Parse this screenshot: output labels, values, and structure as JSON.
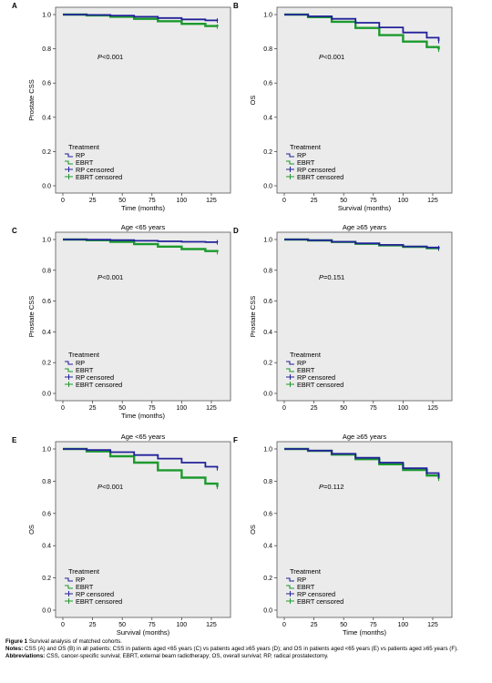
{
  "chart_data": [
    {
      "type": "line",
      "panel_letter": "A",
      "title": "",
      "xlabel": "Time (months)",
      "ylabel": "Prostate CSS",
      "xlim": [
        0,
        135
      ],
      "ylim": [
        0,
        1
      ],
      "x_ticks": [
        "0",
        "25",
        "50",
        "75",
        "100",
        "125"
      ],
      "y_ticks": [
        "0.0",
        "0.2",
        "0.4",
        "0.6",
        "0.8",
        "1.0"
      ],
      "pvalue_label": "P<0.001",
      "legend": {
        "title": "Treatment",
        "entries": [
          "RP",
          "EBRT",
          "RP censored",
          "EBRT censored"
        ]
      },
      "series": [
        {
          "name": "RP",
          "color": "#22229a",
          "x": [
            0,
            20,
            40,
            60,
            80,
            100,
            120,
            130
          ],
          "y": [
            1.0,
            0.998,
            0.994,
            0.987,
            0.98,
            0.972,
            0.966,
            0.965
          ]
        },
        {
          "name": "EBRT",
          "color": "#1c9a2e",
          "x": [
            0,
            20,
            40,
            60,
            80,
            100,
            120,
            130
          ],
          "y": [
            1.0,
            0.995,
            0.987,
            0.975,
            0.961,
            0.946,
            0.933,
            0.93
          ]
        }
      ],
      "grid": false
    },
    {
      "type": "line",
      "panel_letter": "B",
      "title": "",
      "xlabel": "Survival (months)",
      "ylabel": "OS",
      "xlim": [
        0,
        135
      ],
      "ylim": [
        0,
        1
      ],
      "x_ticks": [
        "0",
        "25",
        "50",
        "75",
        "100",
        "125"
      ],
      "y_ticks": [
        "0.0",
        "0.2",
        "0.4",
        "0.6",
        "0.8",
        "1.0"
      ],
      "pvalue_label": "P<0.001",
      "legend": {
        "title": "Treatment",
        "entries": [
          "RP",
          "EBRT",
          "RP censored",
          "EBRT censored"
        ]
      },
      "series": [
        {
          "name": "RP",
          "color": "#22229a",
          "x": [
            0,
            20,
            40,
            60,
            80,
            100,
            120,
            130
          ],
          "y": [
            1.0,
            0.99,
            0.975,
            0.952,
            0.925,
            0.895,
            0.865,
            0.845
          ]
        },
        {
          "name": "EBRT",
          "color": "#1c9a2e",
          "x": [
            0,
            20,
            40,
            60,
            80,
            100,
            120,
            130
          ],
          "y": [
            1.0,
            0.985,
            0.958,
            0.922,
            0.88,
            0.842,
            0.81,
            0.795
          ]
        }
      ],
      "grid": false
    },
    {
      "type": "line",
      "panel_letter": "C",
      "title": "Age <65 years",
      "xlabel": "Time (months)",
      "ylabel": "Prostate CSS",
      "xlim": [
        0,
        135
      ],
      "ylim": [
        0,
        1
      ],
      "x_ticks": [
        "0",
        "25",
        "50",
        "75",
        "100",
        "125"
      ],
      "y_ticks": [
        "0.0",
        "0.2",
        "0.4",
        "0.6",
        "0.8",
        "1.0"
      ],
      "pvalue_label": "P<0.001",
      "legend": {
        "title": "Treatment",
        "entries": [
          "RP",
          "EBRT",
          "RP censored",
          "EBRT censored"
        ]
      },
      "series": [
        {
          "name": "RP",
          "color": "#22229a",
          "x": [
            0,
            20,
            40,
            60,
            80,
            100,
            120,
            130
          ],
          "y": [
            1.0,
            0.999,
            0.996,
            0.992,
            0.988,
            0.985,
            0.983,
            0.982
          ]
        },
        {
          "name": "EBRT",
          "color": "#1c9a2e",
          "x": [
            0,
            20,
            40,
            60,
            80,
            100,
            120,
            130
          ],
          "y": [
            1.0,
            0.995,
            0.985,
            0.97,
            0.954,
            0.938,
            0.925,
            0.918
          ]
        }
      ],
      "grid": false
    },
    {
      "type": "line",
      "panel_letter": "D",
      "title": "Age ≥65  years",
      "xlabel": "",
      "ylabel": "Prostate CSS",
      "xlim": [
        0,
        135
      ],
      "ylim": [
        0,
        1
      ],
      "x_ticks": [
        "0",
        "25",
        "50",
        "75",
        "100",
        "125"
      ],
      "y_ticks": [
        "0.0",
        "0.2",
        "0.4",
        "0.6",
        "0.8",
        "1.0"
      ],
      "pvalue_label": "P=0.151",
      "legend": {
        "title": "Treatment",
        "entries": [
          "RP",
          "EBRT",
          "RP censored",
          "EBRT censored"
        ]
      },
      "series": [
        {
          "name": "RP",
          "color": "#22229a",
          "x": [
            0,
            20,
            40,
            60,
            80,
            100,
            120,
            130
          ],
          "y": [
            1.0,
            0.995,
            0.985,
            0.975,
            0.965,
            0.955,
            0.948,
            0.945
          ]
        },
        {
          "name": "EBRT",
          "color": "#1c9a2e",
          "x": [
            0,
            20,
            40,
            60,
            80,
            100,
            120,
            130
          ],
          "y": [
            1.0,
            0.994,
            0.984,
            0.972,
            0.962,
            0.952,
            0.944,
            0.94
          ]
        }
      ],
      "grid": false
    },
    {
      "type": "line",
      "panel_letter": "E",
      "title": "Age <65 years",
      "xlabel": "Survival (months)",
      "ylabel": "OS",
      "xlim": [
        0,
        135
      ],
      "ylim": [
        0,
        1
      ],
      "x_ticks": [
        "0",
        "25",
        "50",
        "75",
        "100",
        "125"
      ],
      "y_ticks": [
        "0.0",
        "0.2",
        "0.4",
        "0.6",
        "0.8",
        "1.0"
      ],
      "pvalue_label": "P<0.001",
      "legend": {
        "title": "Treatment",
        "entries": [
          "RP",
          "EBRT",
          "RP censored",
          "EBRT censored"
        ]
      },
      "series": [
        {
          "name": "RP",
          "color": "#22229a",
          "x": [
            0,
            20,
            40,
            60,
            80,
            100,
            120,
            130
          ],
          "y": [
            1.0,
            0.993,
            0.98,
            0.962,
            0.94,
            0.915,
            0.89,
            0.88
          ]
        },
        {
          "name": "EBRT",
          "color": "#1c9a2e",
          "x": [
            0,
            20,
            40,
            60,
            80,
            100,
            120,
            130
          ],
          "y": [
            1.0,
            0.985,
            0.955,
            0.915,
            0.868,
            0.822,
            0.785,
            0.765
          ]
        }
      ],
      "grid": false
    },
    {
      "type": "line",
      "panel_letter": "F",
      "title": "Age ≥65 years",
      "xlabel": "Time (months)",
      "ylabel": "OS",
      "xlim": [
        0,
        135
      ],
      "ylim": [
        0,
        1
      ],
      "x_ticks": [
        "0",
        "25",
        "50",
        "75",
        "100",
        "125"
      ],
      "y_ticks": [
        "0.0",
        "0.2",
        "0.4",
        "0.6",
        "0.8",
        "1.0"
      ],
      "pvalue_label": "P=0.112",
      "legend": {
        "title": "Treatment",
        "entries": [
          "RP",
          "EBRT",
          "RP censored",
          "EBRT censored"
        ]
      },
      "series": [
        {
          "name": "RP",
          "color": "#22229a",
          "x": [
            0,
            20,
            40,
            60,
            80,
            100,
            120,
            130
          ],
          "y": [
            1.0,
            0.99,
            0.97,
            0.945,
            0.915,
            0.88,
            0.85,
            0.835
          ]
        },
        {
          "name": "EBRT",
          "color": "#1c9a2e",
          "x": [
            0,
            20,
            40,
            60,
            80,
            100,
            120,
            130
          ],
          "y": [
            1.0,
            0.988,
            0.965,
            0.937,
            0.905,
            0.87,
            0.835,
            0.815
          ]
        }
      ],
      "grid": false
    }
  ],
  "caption": {
    "figure_label": "Figure 1",
    "figure_title": "Survival analysis of matched cohorts.",
    "notes_label": "Notes:",
    "notes_text": "CSS (A) and OS (B) in all patients; CSS in patients aged <65 years (C) vs patients aged ≥65 years (D); and OS in patients aged <65 years (E) vs patients aged ≥65 years (F).",
    "abbrev_label": "Abbreviations:",
    "abbrev_text": "CSS, cancer-specific survival; EBRT, external beam radiotherapy; OS, overall survival; RP, radical prostatectomy."
  }
}
